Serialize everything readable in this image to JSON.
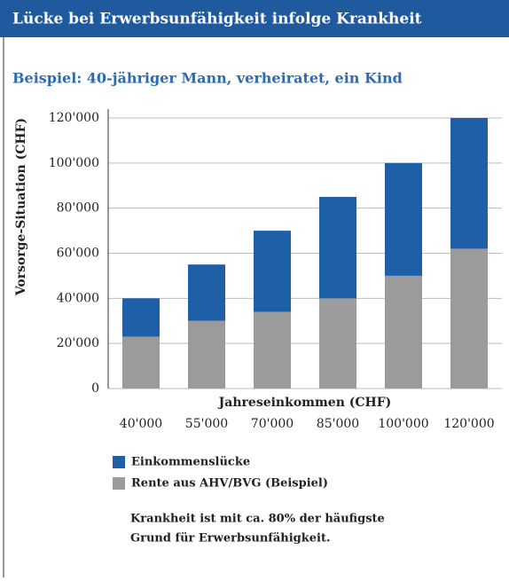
{
  "chart_data": {
    "type": "stacked_bar",
    "title": "Lücke bei Erwerbsunfähigkeit infolge Krankheit",
    "subtitle": "Beispiel: 40-jähriger Mann, verheiratet, ein Kind",
    "y_label": "Vorsorge-Situation (CHF)",
    "x_label": "Jahreseinkommen (CHF)",
    "categories": [
      "40'000",
      "55'000",
      "70'000",
      "85'000",
      "100'000",
      "120'000"
    ],
    "series": [
      {
        "name": "Einkommenslücke",
        "color": "#1f5fa8",
        "values": [
          17000,
          25000,
          36000,
          45000,
          50000,
          58000
        ]
      },
      {
        "name": "Rente aus AHV/BVG (Beispiel)",
        "color": "#9b9b9b",
        "values": [
          23000,
          30000,
          34000,
          40000,
          50000,
          62000
        ]
      }
    ],
    "ylim": [
      0,
      120000
    ],
    "yticks": [
      0,
      {
        "value": 20000,
        "label": "20'000"
      },
      {
        "value": 40000,
        "label": "40'000"
      },
      {
        "value": 60000,
        "label": "60'000"
      },
      {
        "value": 80000,
        "label": "80'000"
      },
      {
        "value": 100000,
        "label": "100'000"
      },
      {
        "value": 120000,
        "label": "120'000"
      }
    ],
    "grid": true,
    "note": [
      "Krankheit ist mit ca. 80% der häufigste",
      "Grund für Erwerbsunfähigkeit."
    ]
  }
}
